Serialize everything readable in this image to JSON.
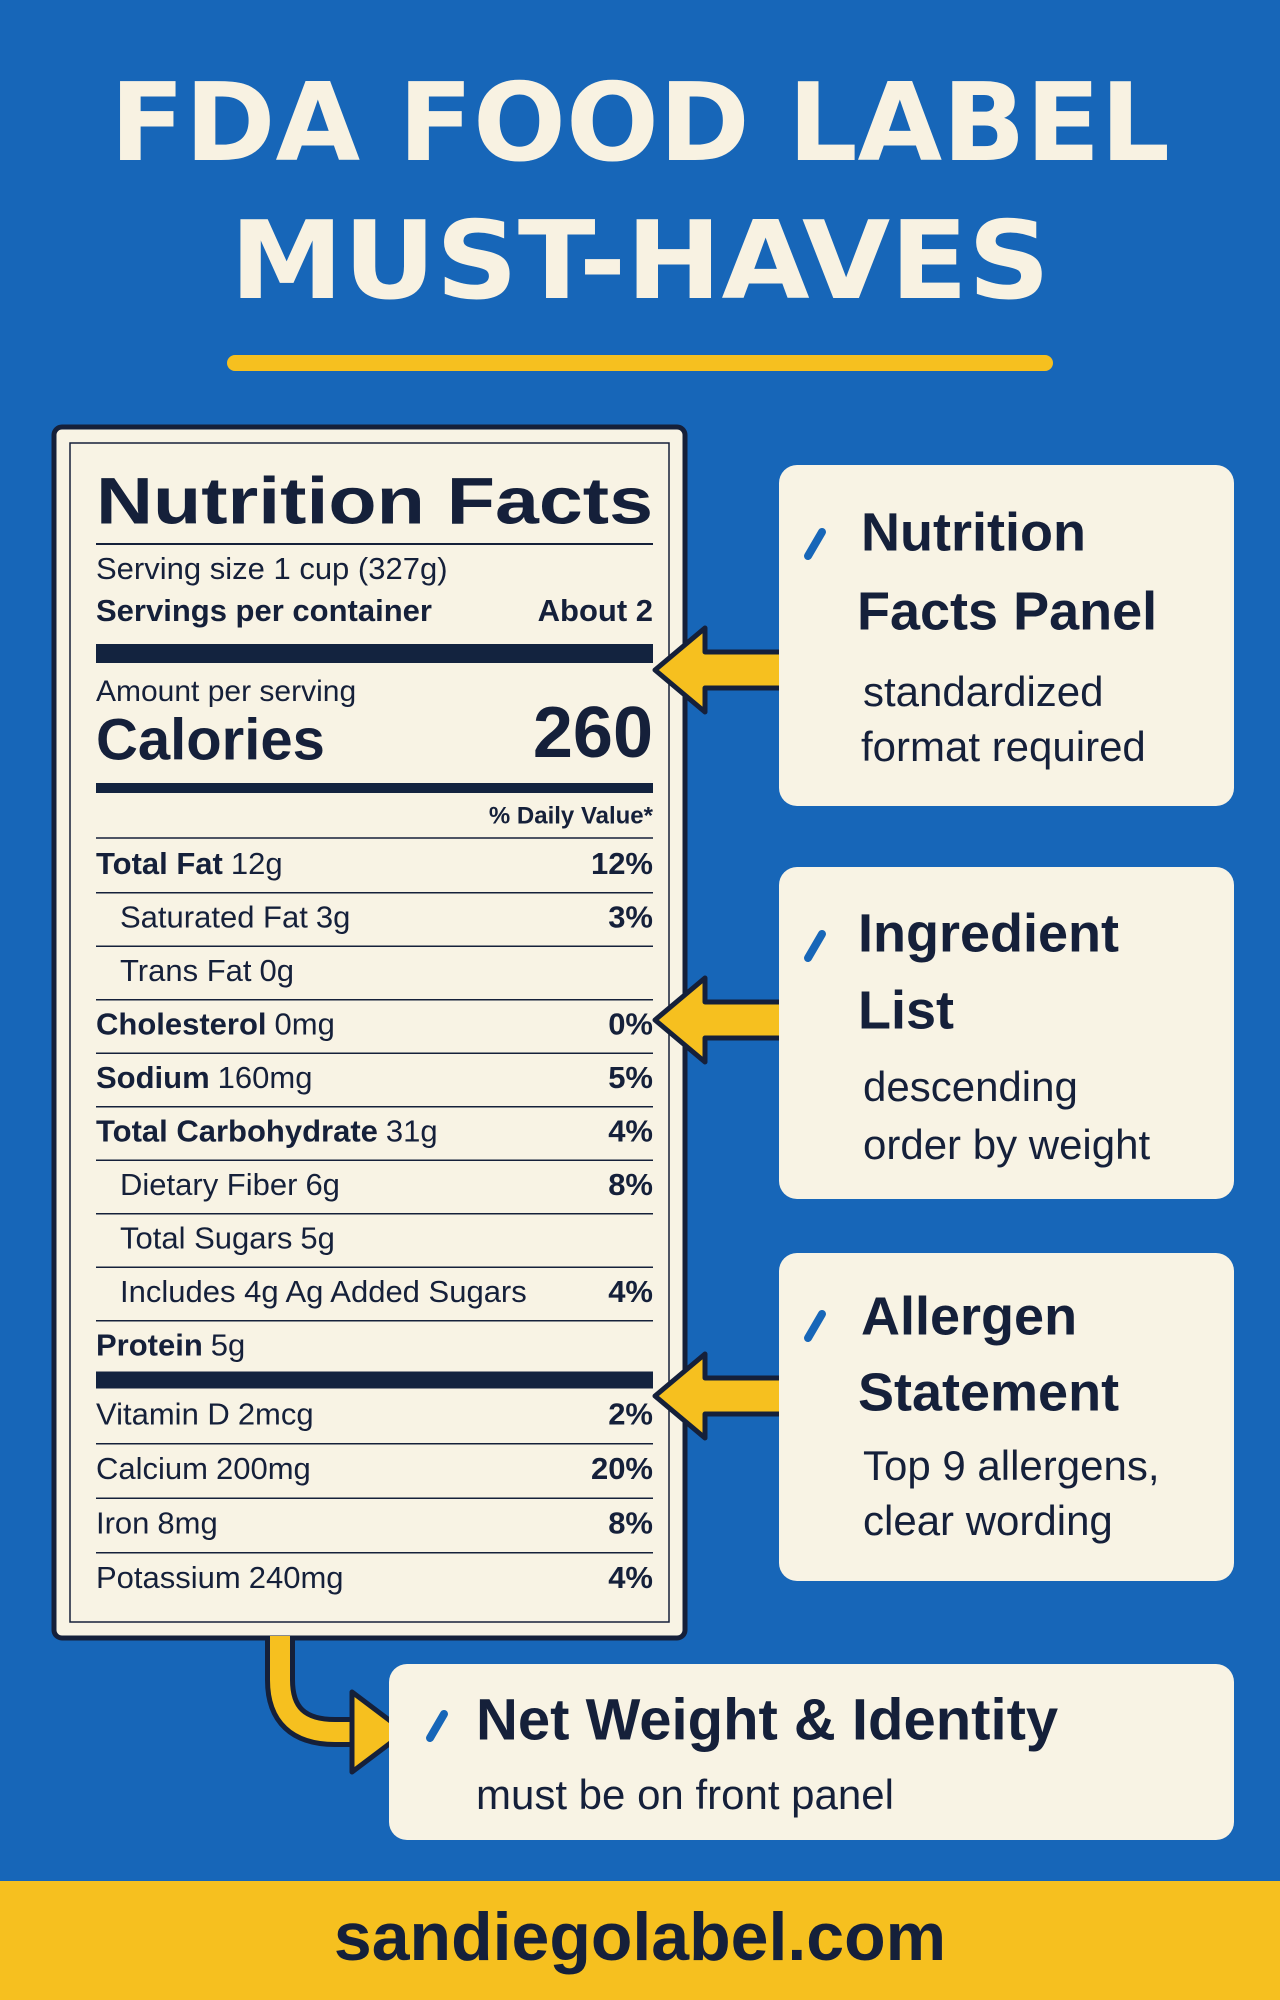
{
  "header": {
    "title_lines": [
      "FDA FOOD LABEL",
      "MUST-HAVES"
    ]
  },
  "nutrition_facts": {
    "title": "Nutrition Facts",
    "serving_size": "Serving size 1 cup (327g)",
    "servings_label": "Servings per container",
    "servings_value": "About 2",
    "amount_per_serving": "Amount per serving",
    "calories_label": "Calories",
    "calories_value": 260,
    "daily_value_header": "% Daily Value*",
    "rows": [
      {
        "name": "Total Fat",
        "amount": "12g",
        "dv": "12%",
        "subrows": [
          {
            "name": "Saturated Fat",
            "amount": "3g",
            "dv": "3%"
          },
          {
            "name": "Trans Fat",
            "amount": "0g"
          }
        ]
      },
      {
        "name": "Cholesterol",
        "amount": "0mg",
        "dv": "0%"
      },
      {
        "name": "Sodium",
        "amount": "160mg",
        "dv": "5%"
      },
      {
        "name": "Total Carbohydrate",
        "amount": "31g",
        "dv": "4%",
        "subrows": [
          {
            "name": "Dietary Fiber",
            "amount": "6g",
            "dv": "8%"
          },
          {
            "name": "Total Sugars",
            "amount": "5g"
          },
          {
            "name": "Includes 4g Ag Added Sugars",
            "dv": "4%"
          }
        ]
      },
      {
        "name": "Protein",
        "amount": "5g"
      }
    ],
    "vitamins_minerals": [
      {
        "name": "Vitamin D",
        "amount": "2mcg",
        "dv": "2%"
      },
      {
        "name": "Calcium",
        "amount": "200mg",
        "dv": "20%"
      },
      {
        "name": "Iron",
        "amount": "8mg",
        "dv": "8%"
      },
      {
        "name": "Potassium",
        "amount": "240mg",
        "dv": "4%"
      }
    ]
  },
  "callouts": [
    {
      "title_lines": [
        "Nutrition",
        "Facts Panel"
      ],
      "description_lines": [
        "standardized",
        "format required"
      ]
    },
    {
      "title_lines": [
        "Ingredient",
        "List"
      ],
      "description_lines": [
        "descending",
        "order by weight"
      ]
    },
    {
      "title_lines": [
        "Allergen",
        "Statement"
      ],
      "description_lines": [
        "Top 9 allergens,",
        "clear wording"
      ]
    },
    {
      "title_lines": [
        "Net Weight & Identity"
      ],
      "description_lines": [
        "must be on front panel"
      ]
    }
  ],
  "footer": {
    "website": "sandiegolabel.com"
  }
}
